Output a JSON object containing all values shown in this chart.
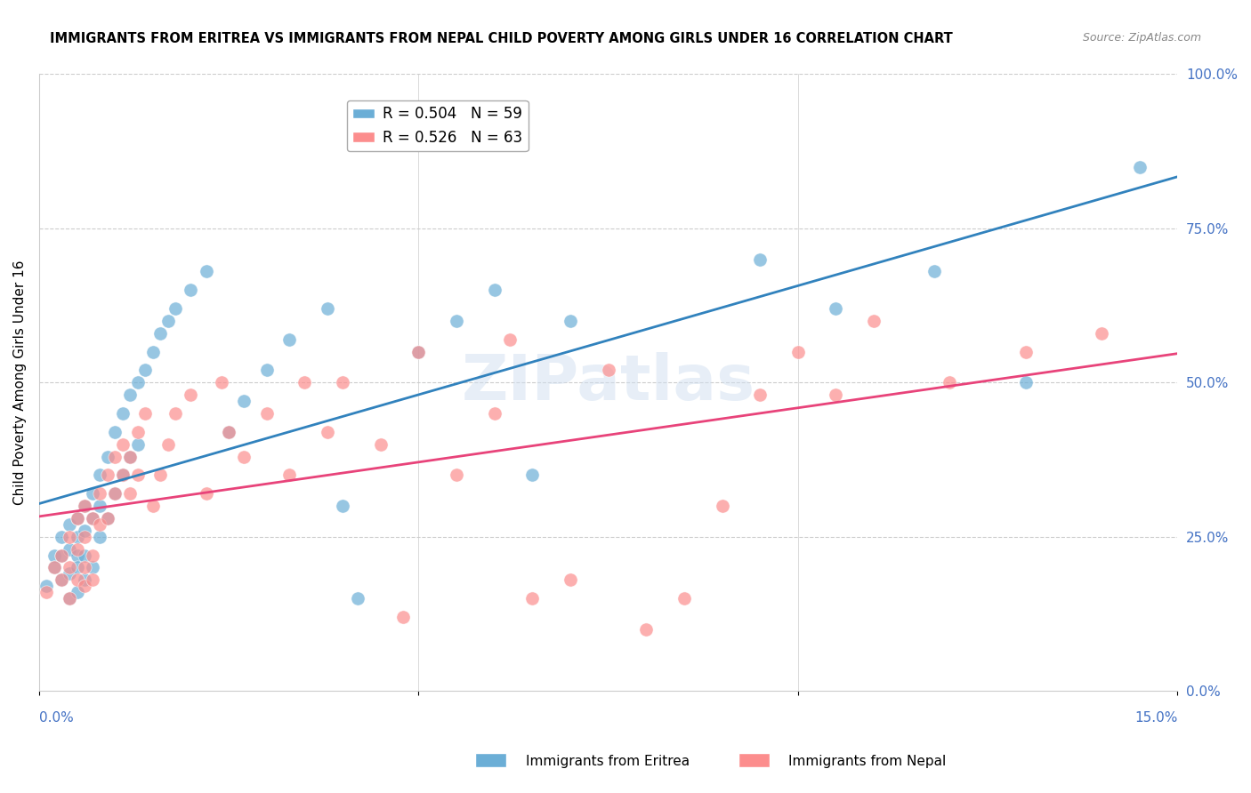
{
  "title": "IMMIGRANTS FROM ERITREA VS IMMIGRANTS FROM NEPAL CHILD POVERTY AMONG GIRLS UNDER 16 CORRELATION CHART",
  "source": "Source: ZipAtlas.com",
  "ylabel": "Child Poverty Among Girls Under 16",
  "xlabel": "",
  "xlim": [
    0.0,
    0.15
  ],
  "ylim": [
    0.0,
    1.0
  ],
  "xticks": [
    0.0,
    0.05,
    0.1,
    0.15
  ],
  "xtick_labels": [
    "0.0%",
    "",
    "",
    "15.0%"
  ],
  "ytick_labels": [
    "100.0%",
    "75.0%",
    "50.0%",
    "25.0%",
    "0.0%"
  ],
  "yticks": [
    1.0,
    0.75,
    0.5,
    0.25,
    0.0
  ],
  "legend_eritrea": "R = 0.504   N = 59",
  "legend_nepal": "R = 0.526   N = 63",
  "R_eritrea": 0.504,
  "N_eritrea": 59,
  "R_nepal": 0.526,
  "N_nepal": 63,
  "color_eritrea": "#6baed6",
  "color_nepal": "#fc8d8d",
  "line_color_eritrea": "#3182bd",
  "line_color_nepal": "#e8437a",
  "watermark": "ZIPatlas",
  "background": "#ffffff",
  "eritrea_x": [
    0.001,
    0.002,
    0.002,
    0.003,
    0.003,
    0.003,
    0.004,
    0.004,
    0.004,
    0.004,
    0.005,
    0.005,
    0.005,
    0.005,
    0.005,
    0.006,
    0.006,
    0.006,
    0.006,
    0.007,
    0.007,
    0.007,
    0.008,
    0.008,
    0.008,
    0.009,
    0.009,
    0.01,
    0.01,
    0.011,
    0.011,
    0.012,
    0.012,
    0.013,
    0.013,
    0.014,
    0.015,
    0.016,
    0.017,
    0.018,
    0.02,
    0.022,
    0.025,
    0.027,
    0.03,
    0.033,
    0.038,
    0.04,
    0.042,
    0.05,
    0.055,
    0.06,
    0.065,
    0.07,
    0.095,
    0.105,
    0.118,
    0.13,
    0.145
  ],
  "eritrea_y": [
    0.17,
    0.22,
    0.2,
    0.25,
    0.22,
    0.18,
    0.27,
    0.23,
    0.19,
    0.15,
    0.28,
    0.25,
    0.22,
    0.2,
    0.16,
    0.3,
    0.26,
    0.22,
    0.18,
    0.32,
    0.28,
    0.2,
    0.35,
    0.3,
    0.25,
    0.38,
    0.28,
    0.42,
    0.32,
    0.45,
    0.35,
    0.48,
    0.38,
    0.5,
    0.4,
    0.52,
    0.55,
    0.58,
    0.6,
    0.62,
    0.65,
    0.68,
    0.42,
    0.47,
    0.52,
    0.57,
    0.62,
    0.3,
    0.15,
    0.55,
    0.6,
    0.65,
    0.35,
    0.6,
    0.7,
    0.62,
    0.68,
    0.5,
    0.85
  ],
  "nepal_x": [
    0.001,
    0.002,
    0.003,
    0.003,
    0.004,
    0.004,
    0.004,
    0.005,
    0.005,
    0.005,
    0.006,
    0.006,
    0.006,
    0.006,
    0.007,
    0.007,
    0.007,
    0.008,
    0.008,
    0.009,
    0.009,
    0.01,
    0.01,
    0.011,
    0.011,
    0.012,
    0.012,
    0.013,
    0.013,
    0.014,
    0.015,
    0.016,
    0.017,
    0.018,
    0.02,
    0.022,
    0.024,
    0.025,
    0.027,
    0.03,
    0.033,
    0.035,
    0.038,
    0.04,
    0.045,
    0.05,
    0.055,
    0.06,
    0.065,
    0.07,
    0.075,
    0.08,
    0.09,
    0.095,
    0.1,
    0.11,
    0.12,
    0.13,
    0.14,
    0.105,
    0.062,
    0.085,
    0.048
  ],
  "nepal_y": [
    0.16,
    0.2,
    0.22,
    0.18,
    0.25,
    0.2,
    0.15,
    0.28,
    0.23,
    0.18,
    0.3,
    0.25,
    0.2,
    0.17,
    0.28,
    0.22,
    0.18,
    0.32,
    0.27,
    0.35,
    0.28,
    0.38,
    0.32,
    0.4,
    0.35,
    0.38,
    0.32,
    0.42,
    0.35,
    0.45,
    0.3,
    0.35,
    0.4,
    0.45,
    0.48,
    0.32,
    0.5,
    0.42,
    0.38,
    0.45,
    0.35,
    0.5,
    0.42,
    0.5,
    0.4,
    0.55,
    0.35,
    0.45,
    0.15,
    0.18,
    0.52,
    0.1,
    0.3,
    0.48,
    0.55,
    0.6,
    0.5,
    0.55,
    0.58,
    0.48,
    0.57,
    0.15,
    0.12
  ]
}
